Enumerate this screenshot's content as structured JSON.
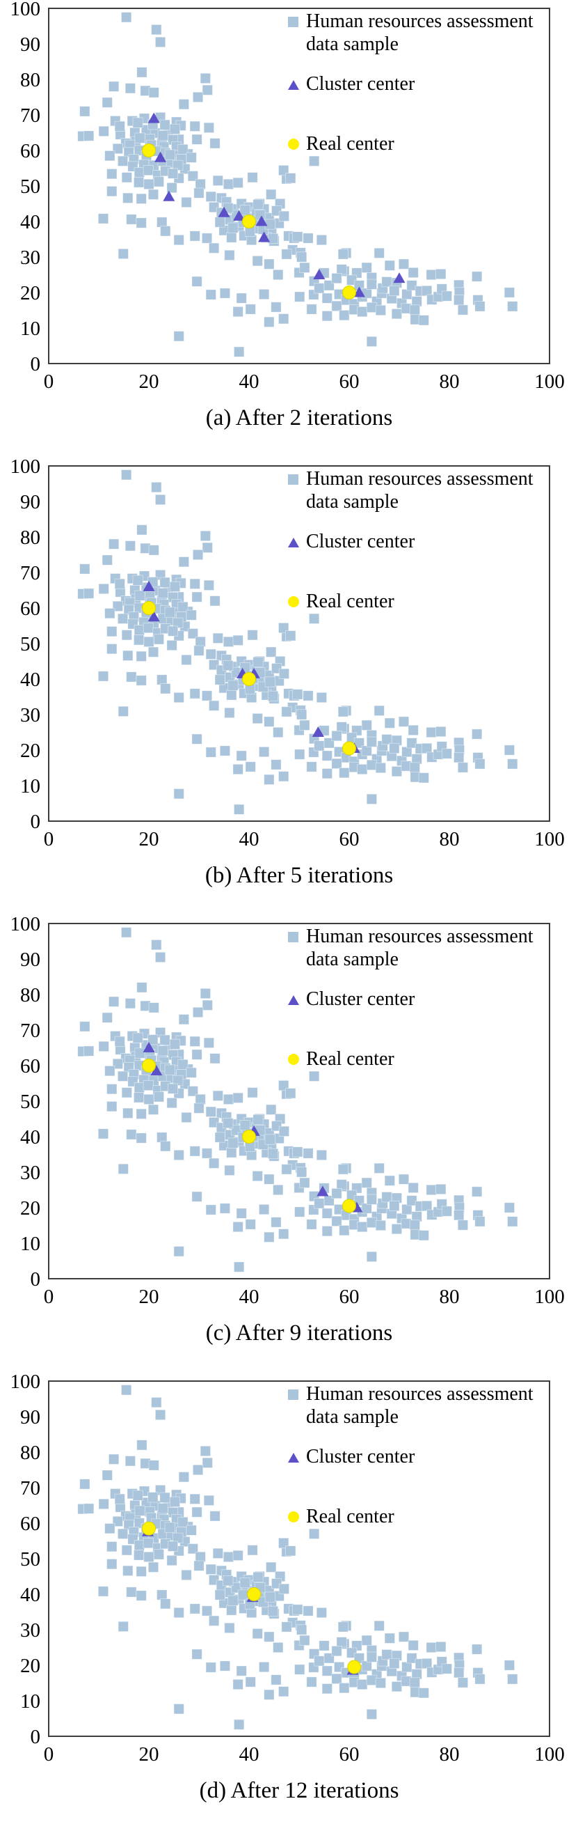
{
  "figure": {
    "background": "#ffffff",
    "description": "Four stacked scatter plots showing k-means cluster centers converging toward real centers over iterations"
  },
  "colors": {
    "sample_square": "#a9c4db",
    "cluster_triangle": "#5c50c8",
    "real_circle": "#fdf000",
    "real_circle_edge": "#d9d400",
    "frame": "#3c3c3c",
    "text": "#000000"
  },
  "legend": {
    "items": [
      {
        "marker": "square",
        "color": "#a9c4db",
        "label": "Human resources assessment data sample",
        "lines": [
          "Human resources assessment",
          "data sample"
        ]
      },
      {
        "marker": "triangle",
        "color": "#5c50c8",
        "label": "Cluster center",
        "lines": [
          "Cluster center"
        ]
      },
      {
        "marker": "circle",
        "color": "#fdf000",
        "label": "Real center",
        "lines": [
          "Real center"
        ]
      }
    ]
  },
  "axes": {
    "x_range": [
      0,
      100
    ],
    "y_range": [
      0,
      100
    ],
    "x_ticks": [
      0,
      20,
      40,
      60,
      80,
      100
    ],
    "y_ticks": [
      0,
      10,
      20,
      30,
      40,
      50,
      60,
      70,
      80,
      90,
      100
    ],
    "grid": false
  },
  "sample_points": [
    [
      15.5,
      97.5
    ],
    [
      21.5,
      94
    ],
    [
      22.3,
      90.5
    ],
    [
      18.6,
      82
    ],
    [
      13,
      78
    ],
    [
      16.3,
      77.5
    ],
    [
      19.3,
      76.8
    ],
    [
      21,
      76.3
    ],
    [
      31.3,
      80.3
    ],
    [
      31.7,
      77
    ],
    [
      29.8,
      75
    ],
    [
      11.7,
      73.5
    ],
    [
      27,
      73
    ],
    [
      7.2,
      71
    ],
    [
      13.3,
      68.3
    ],
    [
      6.8,
      64
    ],
    [
      11,
      65.4
    ],
    [
      8,
      64.1
    ],
    [
      14.3,
      64.5
    ],
    [
      16.7,
      68.3
    ],
    [
      19.1,
      69
    ],
    [
      22.3,
      69.3
    ],
    [
      25.5,
      68
    ],
    [
      26.4,
      67
    ],
    [
      29.2,
      66.8
    ],
    [
      32,
      66.4
    ],
    [
      33.2,
      62
    ],
    [
      17.2,
      65
    ],
    [
      19.5,
      65.8
    ],
    [
      21.3,
      64.9
    ],
    [
      23.9,
      65.8
    ],
    [
      26,
      63.1
    ],
    [
      29.6,
      63.1
    ],
    [
      14.2,
      66.8
    ],
    [
      17.8,
      67.8
    ],
    [
      20.8,
      67.3
    ],
    [
      23.2,
      67.2
    ],
    [
      25.2,
      66
    ],
    [
      15.4,
      62
    ],
    [
      17.4,
      62.5
    ],
    [
      22.6,
      62
    ],
    [
      20.2,
      63.2
    ],
    [
      22.8,
      64.2
    ],
    [
      24.8,
      63
    ],
    [
      18.2,
      63.5
    ],
    [
      16.2,
      61.5
    ],
    [
      18.1,
      60
    ],
    [
      20.5,
      61.5
    ],
    [
      23,
      61
    ],
    [
      25.5,
      61
    ],
    [
      27.8,
      59
    ],
    [
      16,
      59.5
    ],
    [
      19.5,
      58.5
    ],
    [
      21.5,
      59.8
    ],
    [
      23.3,
      59.3
    ],
    [
      25,
      58.6
    ],
    [
      26.8,
      60.3
    ],
    [
      13.8,
      60.5
    ],
    [
      12.2,
      58.5
    ],
    [
      14.8,
      57
    ],
    [
      17,
      57.5
    ],
    [
      19,
      56
    ],
    [
      21,
      55.8
    ],
    [
      22.8,
      57
    ],
    [
      24.5,
      56.5
    ],
    [
      26.5,
      57.5
    ],
    [
      28.5,
      58
    ],
    [
      24.2,
      58.8
    ],
    [
      27.2,
      54.8
    ],
    [
      25.8,
      55.8
    ],
    [
      16.8,
      55.5
    ],
    [
      12.6,
      53.4
    ],
    [
      15.6,
      52.4
    ],
    [
      18.1,
      53.8
    ],
    [
      19.9,
      54.4
    ],
    [
      21.8,
      53
    ],
    [
      23.3,
      54.2
    ],
    [
      26,
      52.2
    ],
    [
      28.8,
      52.8
    ],
    [
      30.3,
      50.5
    ],
    [
      33.8,
      51.5
    ],
    [
      35.9,
      50.5
    ],
    [
      37.8,
      50.9
    ],
    [
      40.7,
      52.4
    ],
    [
      18,
      51
    ],
    [
      20,
      50.5
    ],
    [
      22,
      51.2
    ],
    [
      24.8,
      53.5
    ],
    [
      12.6,
      48.5
    ],
    [
      15.8,
      46.6
    ],
    [
      18.5,
      46.4
    ],
    [
      20.9,
      47.6
    ],
    [
      24.6,
      49.5
    ],
    [
      27.5,
      45.4
    ],
    [
      30,
      48
    ],
    [
      32.4,
      47
    ],
    [
      34.5,
      46.6
    ],
    [
      47.5,
      52
    ],
    [
      46.9,
      54.4
    ],
    [
      48.3,
      52.2
    ],
    [
      53,
      57
    ],
    [
      42.1,
      45
    ],
    [
      44.4,
      47.6
    ],
    [
      46.2,
      45
    ],
    [
      10.9,
      40.8
    ],
    [
      16.5,
      40.6
    ],
    [
      18.5,
      39.6
    ],
    [
      22.6,
      39.8
    ],
    [
      23.3,
      37.3
    ],
    [
      26,
      34.8
    ],
    [
      29.2,
      35.9
    ],
    [
      31.6,
      35.3
    ],
    [
      14.9,
      30.9
    ],
    [
      33,
      44
    ],
    [
      34.5,
      42.5
    ],
    [
      35.5,
      45.5
    ],
    [
      36.2,
      40.5
    ],
    [
      37,
      43.5
    ],
    [
      38,
      38.5
    ],
    [
      38.5,
      45
    ],
    [
      39.5,
      41
    ],
    [
      40,
      44
    ],
    [
      41,
      38
    ],
    [
      41.5,
      42.5
    ],
    [
      42.5,
      40
    ],
    [
      43,
      43.5
    ],
    [
      44,
      41
    ],
    [
      44.5,
      37.5
    ],
    [
      45.5,
      43
    ],
    [
      46,
      39.5
    ],
    [
      47,
      41.5
    ],
    [
      35,
      37.5
    ],
    [
      36.5,
      35.5
    ],
    [
      39,
      36
    ],
    [
      40.5,
      34.8
    ],
    [
      43.5,
      35.5
    ],
    [
      45,
      34.5
    ],
    [
      47.9,
      35.9
    ],
    [
      49,
      35.3
    ],
    [
      49.7,
      35.7
    ],
    [
      48.7,
      32
    ],
    [
      36.1,
      30.5
    ],
    [
      37.5,
      41.8
    ],
    [
      39.2,
      43.2
    ],
    [
      40.8,
      40.2
    ],
    [
      42.2,
      41.8
    ],
    [
      38.8,
      39.8
    ],
    [
      36.8,
      38.2
    ],
    [
      42.8,
      37.8
    ],
    [
      44.2,
      39.2
    ],
    [
      35.8,
      43.8
    ],
    [
      41.8,
      44.8
    ],
    [
      40.2,
      37.2
    ],
    [
      34.2,
      39.8
    ],
    [
      44.8,
      35.2
    ],
    [
      45.8,
      25
    ],
    [
      50,
      25.6
    ],
    [
      41.7,
      28.9
    ],
    [
      44,
      28
    ],
    [
      33,
      32.5
    ],
    [
      29.6,
      23.1
    ],
    [
      32.4,
      19.4
    ],
    [
      35.2,
      19.8
    ],
    [
      38.5,
      18.4
    ],
    [
      37.8,
      14.6
    ],
    [
      40.3,
      15.3
    ],
    [
      44,
      11.7
    ],
    [
      46.9,
      12.6
    ],
    [
      45.4,
      15.9
    ],
    [
      43,
      19.5
    ],
    [
      47.5,
      30.8
    ],
    [
      50.3,
      31.2
    ],
    [
      51.8,
      35.3
    ],
    [
      54.5,
      34.8
    ],
    [
      50.5,
      30
    ],
    [
      26,
      7.7
    ],
    [
      38,
      3.3
    ],
    [
      59.4,
      31.1
    ],
    [
      66,
      31.1
    ],
    [
      58.8,
      30.8
    ],
    [
      51.1,
      27
    ],
    [
      59,
      26
    ],
    [
      63.5,
      27
    ],
    [
      68.1,
      27.6
    ],
    [
      70.9,
      28
    ],
    [
      72.8,
      25.6
    ],
    [
      76.4,
      25
    ],
    [
      78.3,
      25.2
    ],
    [
      55,
      25.5
    ],
    [
      58.5,
      26.5
    ],
    [
      61.5,
      25.5
    ],
    [
      52.9,
      19.4
    ],
    [
      50.1,
      18.8
    ],
    [
      53,
      23.2
    ],
    [
      54,
      21.2
    ],
    [
      55.6,
      18.4
    ],
    [
      56,
      22
    ],
    [
      57.5,
      24
    ],
    [
      58,
      19.5
    ],
    [
      59.4,
      17.9
    ],
    [
      60.5,
      23.5
    ],
    [
      61,
      16.8
    ],
    [
      62,
      22
    ],
    [
      62.6,
      18.8
    ],
    [
      63.5,
      19.8
    ],
    [
      64.5,
      24.2
    ],
    [
      64.5,
      22.3
    ],
    [
      65.5,
      17.5
    ],
    [
      66.5,
      19.8
    ],
    [
      66.7,
      21.2
    ],
    [
      67.5,
      23
    ],
    [
      68.5,
      18.3
    ],
    [
      69.5,
      22.7
    ],
    [
      69,
      20.5
    ],
    [
      70.5,
      17
    ],
    [
      71.5,
      19.5
    ],
    [
      72.5,
      22
    ],
    [
      73.5,
      17.5
    ],
    [
      74.2,
      20.4
    ],
    [
      75.5,
      20.5
    ],
    [
      76.5,
      18
    ],
    [
      77.8,
      18.8
    ],
    [
      78.5,
      21
    ],
    [
      79.5,
      19
    ],
    [
      81.9,
      22.1
    ],
    [
      82,
      20
    ],
    [
      52.5,
      15.3
    ],
    [
      55.6,
      13.4
    ],
    [
      57.5,
      16.2
    ],
    [
      59,
      13.6
    ],
    [
      61,
      15.2
    ],
    [
      62.6,
      14.6
    ],
    [
      64.5,
      15.8
    ],
    [
      66.3,
      15
    ],
    [
      69.5,
      14
    ],
    [
      71.4,
      15.5
    ],
    [
      73.1,
      15.1
    ],
    [
      73.2,
      12.4
    ],
    [
      74.9,
      12.2
    ],
    [
      64.5,
      6.2
    ],
    [
      81.9,
      17.9
    ],
    [
      85.7,
      17.9
    ],
    [
      82.7,
      15.1
    ],
    [
      86.1,
      16.1
    ],
    [
      92.6,
      16.1
    ],
    [
      85.5,
      24.5
    ],
    [
      92,
      20
    ]
  ],
  "chart_data": [
    {
      "panel": "a",
      "type": "scatter",
      "caption": "(a) After 2 iterations",
      "iterations": 2,
      "x_range": [
        0,
        100
      ],
      "y_range": [
        0,
        100
      ],
      "series_names": [
        "Human resources assessment data sample",
        "Cluster center",
        "Real center"
      ],
      "cluster_centers": [
        [
          21,
          69
        ],
        [
          22.3,
          58
        ],
        [
          24,
          47
        ],
        [
          35,
          42.5
        ],
        [
          38,
          41.5
        ],
        [
          42.5,
          40
        ],
        [
          43,
          35.5
        ],
        [
          54,
          25
        ],
        [
          62,
          20
        ],
        [
          70,
          24
        ]
      ],
      "real_centers": [
        [
          20,
          60
        ],
        [
          40,
          40
        ],
        [
          60,
          20
        ]
      ]
    },
    {
      "panel": "b",
      "type": "scatter",
      "caption": "(b) After 5 iterations",
      "iterations": 5,
      "x_range": [
        0,
        100
      ],
      "y_range": [
        0,
        100
      ],
      "series_names": [
        "Human resources assessment data sample",
        "Cluster center",
        "Real center"
      ],
      "cluster_centers": [
        [
          20,
          66
        ],
        [
          21,
          57.5
        ],
        [
          38.7,
          41.5
        ],
        [
          41,
          41.5
        ],
        [
          53.8,
          25
        ],
        [
          61,
          20.5
        ]
      ],
      "real_centers": [
        [
          20,
          60
        ],
        [
          40,
          40
        ],
        [
          60,
          20.5
        ]
      ]
    },
    {
      "panel": "c",
      "type": "scatter",
      "caption": "(c) After 9 iterations",
      "iterations": 9,
      "x_range": [
        0,
        100
      ],
      "y_range": [
        0,
        100
      ],
      "series_names": [
        "Human resources assessment data sample",
        "Cluster center",
        "Real center"
      ],
      "cluster_centers": [
        [
          20,
          65
        ],
        [
          21.5,
          58.5
        ],
        [
          41,
          41.5
        ],
        [
          54.7,
          24.5
        ],
        [
          61.5,
          20
        ]
      ],
      "real_centers": [
        [
          20,
          60
        ],
        [
          40,
          40
        ],
        [
          60,
          20.5
        ]
      ]
    },
    {
      "panel": "d",
      "type": "scatter",
      "caption": "(d) After 12 iterations",
      "iterations": 12,
      "x_range": [
        0,
        100
      ],
      "y_range": [
        0,
        100
      ],
      "series_names": [
        "Human resources assessment data sample",
        "Cluster center",
        "Real center"
      ],
      "cluster_centers": [
        [
          19.8,
          57.6
        ],
        [
          40.7,
          39.1
        ],
        [
          60.7,
          18.6
        ]
      ],
      "real_centers": [
        [
          20,
          58.5
        ],
        [
          41,
          40
        ],
        [
          61,
          19.5
        ]
      ]
    }
  ]
}
